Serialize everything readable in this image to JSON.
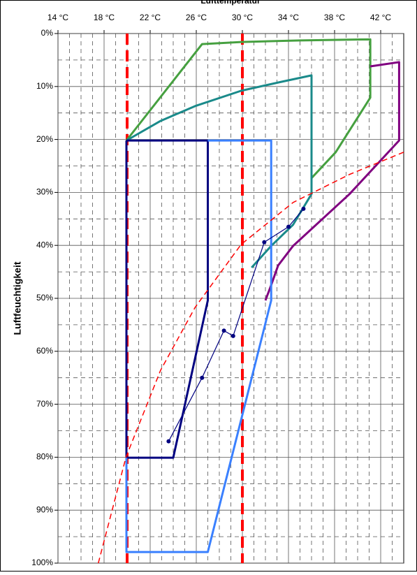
{
  "chart_data": {
    "type": "line",
    "xlabel": "Lufttemperatur",
    "ylabel": "Luftfeuchtigkeit",
    "xlim": [
      14,
      44
    ],
    "ylim": [
      0,
      100
    ],
    "y_inverted": true,
    "x_axis_position": "top",
    "grid": true,
    "xticks": [
      {
        "value": 14,
        "label": "14 °C"
      },
      {
        "value": 18,
        "label": "18 °C"
      },
      {
        "value": 22,
        "label": "22 °C"
      },
      {
        "value": 26,
        "label": "26 °C"
      },
      {
        "value": 30,
        "label": "30 °C"
      },
      {
        "value": 34,
        "label": "34 °C"
      },
      {
        "value": 38,
        "label": "38 °C"
      },
      {
        "value": 42,
        "label": "42 °C"
      }
    ],
    "xminorticks": [
      15,
      16,
      17,
      19,
      20,
      21,
      23,
      24,
      25,
      27,
      28,
      29,
      31,
      32,
      33,
      35,
      36,
      37,
      39,
      40,
      41,
      43
    ],
    "yticks": [
      {
        "value": 0,
        "label": "0%"
      },
      {
        "value": 10,
        "label": "10%"
      },
      {
        "value": 20,
        "label": "20%"
      },
      {
        "value": 30,
        "label": "30%"
      },
      {
        "value": 40,
        "label": "40%"
      },
      {
        "value": 50,
        "label": "50%"
      },
      {
        "value": 60,
        "label": "60%"
      },
      {
        "value": 70,
        "label": "70%"
      },
      {
        "value": 80,
        "label": "80%"
      },
      {
        "value": 90,
        "label": "90%"
      },
      {
        "value": 100,
        "label": "100%"
      }
    ],
    "yminorticks": [
      5,
      15,
      25,
      35,
      45,
      55,
      65,
      75,
      85,
      95
    ],
    "vlines": [
      20,
      30
    ],
    "vline_color": "#ff0000",
    "series": [
      {
        "color": "#46a040",
        "width": 3,
        "x": [
          19.94,
          26.5,
          29.9,
          35.0,
          41.1,
          41.1,
          38.1,
          36.0
        ],
        "values": [
          20.2,
          2.0,
          1.6,
          1.3,
          1.1,
          12.1,
          22.4,
          27.3
        ]
      },
      {
        "color": "#1a8a8a",
        "width": 3,
        "x": [
          19.94,
          22.9,
          25.9,
          29.9,
          33.2,
          36.0,
          36.0,
          34.4,
          32.5,
          30.8
        ],
        "values": [
          20.2,
          16.5,
          13.7,
          10.8,
          9.2,
          7.9,
          30.3,
          36.1,
          40.1,
          44.2
        ]
      },
      {
        "color": "#800080",
        "width": 3,
        "x": [
          41.1,
          43.6,
          43.6,
          39.3,
          34.4,
          33.1,
          32.5,
          32.0
        ],
        "values": [
          6.2,
          5.4,
          20.2,
          30.3,
          40.1,
          43.8,
          47.5,
          50.4
        ]
      },
      {
        "color": "#000080",
        "width": 3,
        "x": [
          19.94,
          27.0,
          27.0,
          24.0,
          19.94,
          19.94
        ],
        "values": [
          20.2,
          20.2,
          50.4,
          80.1,
          80.1,
          20.2
        ]
      },
      {
        "color": "#3a80ff",
        "width": 3,
        "x": [
          27.0,
          32.5,
          32.5,
          27.0,
          19.94,
          19.94
        ],
        "values": [
          20.2,
          20.2,
          50.4,
          97.9,
          97.9,
          80.1
        ]
      },
      {
        "color": "#ff0000",
        "width": 1.5,
        "dashed": true,
        "x": [
          17.5,
          19.9,
          22.9,
          25.9,
          29.9,
          34.4,
          39.3,
          44
        ],
        "values": [
          100,
          80,
          63.6,
          51.7,
          39.8,
          31.9,
          26.6,
          22.4
        ]
      },
      {
        "color": "#000080",
        "width": 1.2,
        "markers": true,
        "x": [
          35.3,
          34.0,
          31.9,
          29.2,
          28.4,
          26.5,
          23.6
        ],
        "values": [
          33.1,
          36.5,
          39.4,
          57.1,
          56.1,
          65.0,
          77.0
        ]
      }
    ]
  }
}
